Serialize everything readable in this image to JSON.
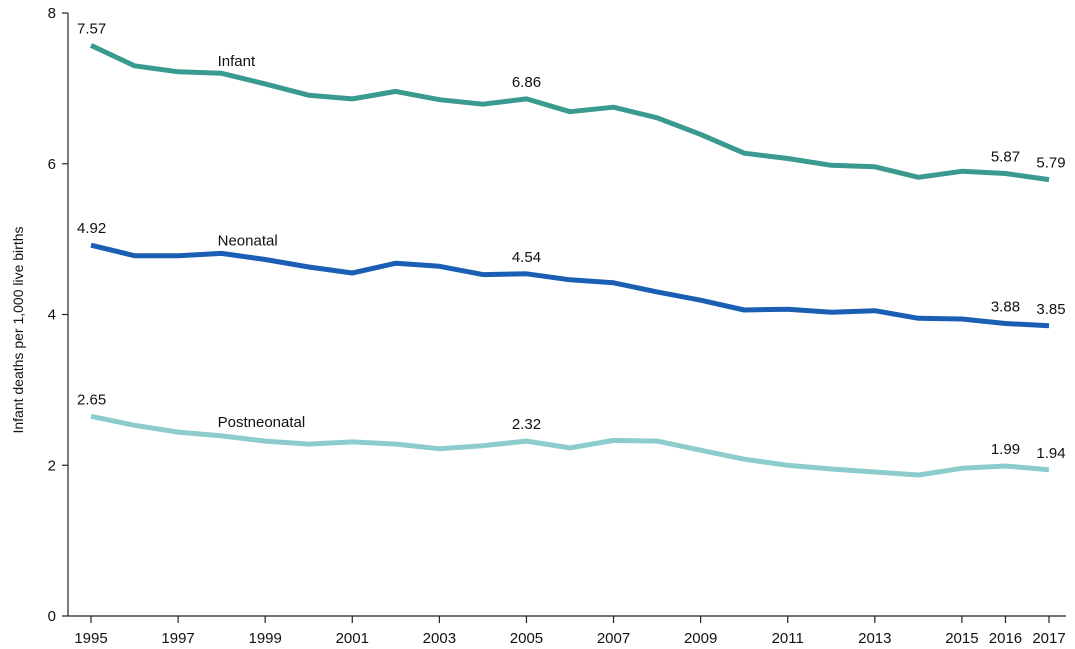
{
  "chart_data": {
    "type": "line",
    "title": "",
    "xlabel": "",
    "ylabel": "Infant deaths per 1,000 live births",
    "x": [
      1995,
      1996,
      1997,
      1998,
      1999,
      2000,
      2001,
      2002,
      2003,
      2004,
      2005,
      2006,
      2007,
      2008,
      2009,
      2010,
      2011,
      2012,
      2013,
      2014,
      2015,
      2016,
      2017
    ],
    "xlim": [
      1995,
      2017
    ],
    "ylim": [
      0,
      8
    ],
    "x_ticks": [
      "1995",
      "1997",
      "1999",
      "2001",
      "2003",
      "2005",
      "2007",
      "2009",
      "2011",
      "2013",
      "2015",
      "2016",
      "2017"
    ],
    "y_ticks": [
      "0",
      "2",
      "4",
      "6",
      "8"
    ],
    "grid": false,
    "series": [
      {
        "name": "Infant",
        "color": "#3a9a8f",
        "values": [
          7.57,
          7.3,
          7.22,
          7.2,
          7.06,
          6.91,
          6.86,
          6.96,
          6.85,
          6.79,
          6.86,
          6.69,
          6.75,
          6.61,
          6.39,
          6.14,
          6.07,
          5.98,
          5.96,
          5.82,
          5.9,
          5.87,
          5.79
        ],
        "labels": [
          {
            "year": 1995,
            "text": "7.57"
          },
          {
            "year": 2005,
            "text": "6.86"
          },
          {
            "year": 2016,
            "text": "5.87"
          },
          {
            "year": 2017,
            "text": "5.79"
          }
        ]
      },
      {
        "name": "Neonatal",
        "color": "#1a5fb4",
        "values": [
          4.92,
          4.78,
          4.78,
          4.81,
          4.73,
          4.63,
          4.55,
          4.68,
          4.64,
          4.53,
          4.54,
          4.46,
          4.42,
          4.3,
          4.19,
          4.06,
          4.07,
          4.03,
          4.05,
          3.95,
          3.94,
          3.88,
          3.85
        ],
        "labels": [
          {
            "year": 1995,
            "text": "4.92"
          },
          {
            "year": 2005,
            "text": "4.54"
          },
          {
            "year": 2016,
            "text": "3.88"
          },
          {
            "year": 2017,
            "text": "3.85"
          }
        ]
      },
      {
        "name": "Postneonatal",
        "color": "#8ccccc",
        "values": [
          2.65,
          2.53,
          2.44,
          2.39,
          2.32,
          2.28,
          2.31,
          2.28,
          2.22,
          2.26,
          2.32,
          2.23,
          2.33,
          2.32,
          2.2,
          2.08,
          2.0,
          1.95,
          1.91,
          1.87,
          1.96,
          1.99,
          1.94
        ],
        "labels": [
          {
            "year": 1995,
            "text": "2.65"
          },
          {
            "year": 2005,
            "text": "2.32"
          },
          {
            "year": 2016,
            "text": "1.99"
          },
          {
            "year": 2017,
            "text": "1.94"
          }
        ]
      }
    ]
  }
}
